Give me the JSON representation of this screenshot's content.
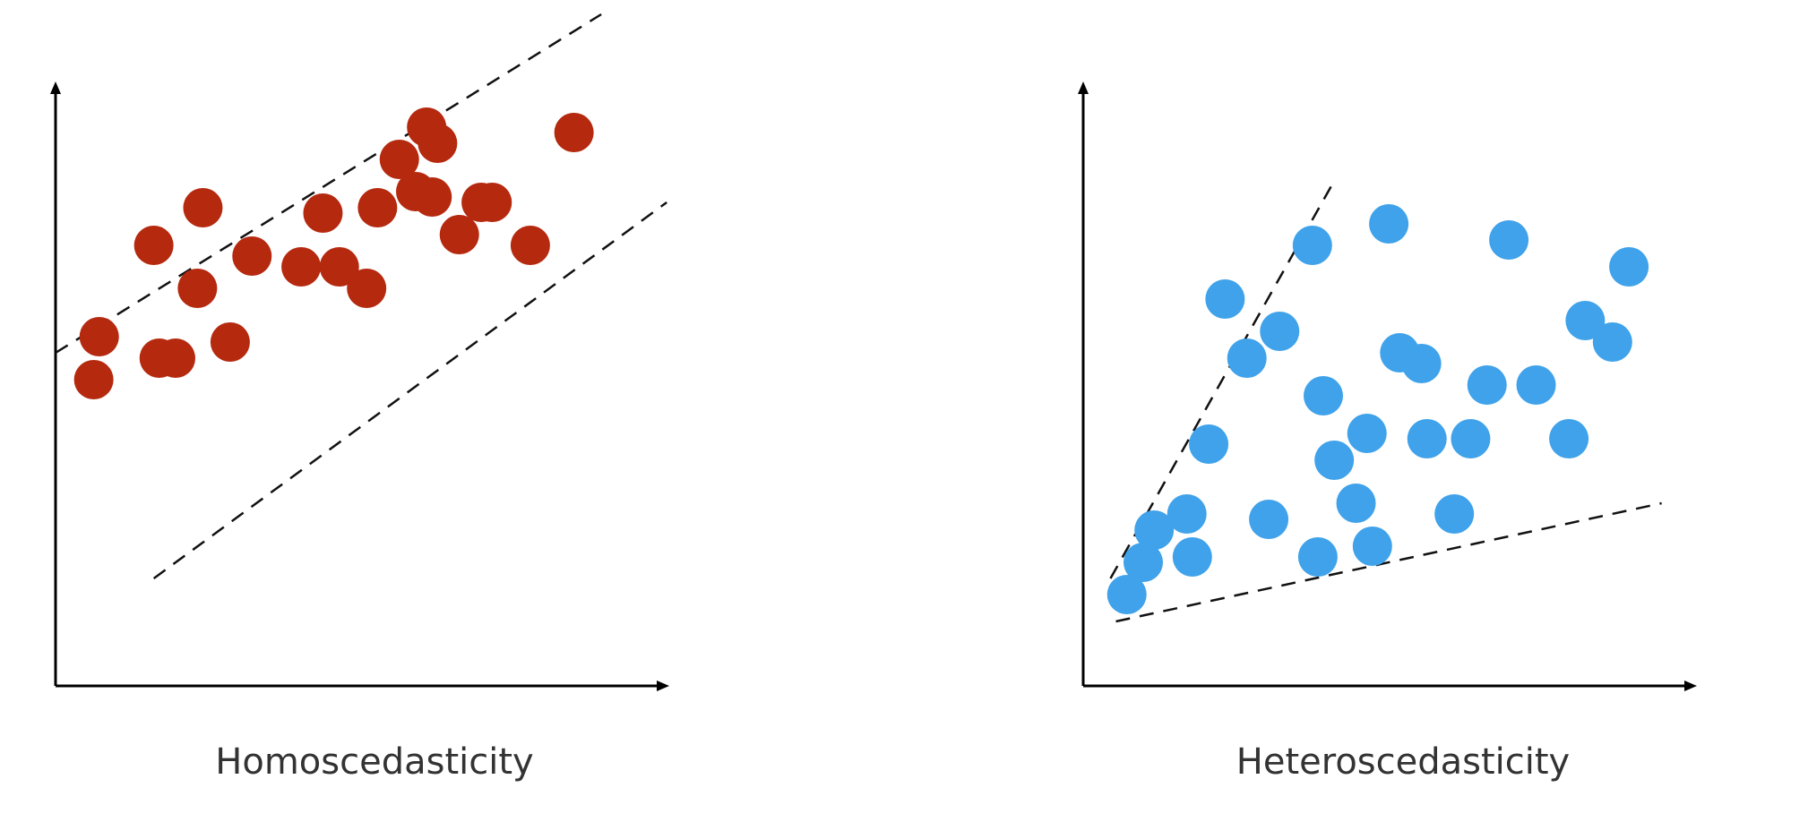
{
  "panels": [
    {
      "caption": "Homoscedasticity",
      "color": "#b5290f",
      "points": [
        [
          2.7,
          8.9
        ],
        [
          1.8,
          8.2
        ],
        [
          6.8,
          10.4
        ],
        [
          2.6,
          7.4
        ],
        [
          9.5,
          10.3
        ],
        [
          5.7,
          7.4
        ],
        [
          6.9,
          9.1
        ],
        [
          5.2,
          7.8
        ],
        [
          4.5,
          7.8
        ],
        [
          8.7,
          8.2
        ],
        [
          3.6,
          8.0
        ],
        [
          6.3,
          9.8
        ],
        [
          0.8,
          6.5
        ],
        [
          2.2,
          6.1
        ],
        [
          8.0,
          9.0
        ],
        [
          4.9,
          8.8
        ],
        [
          7.4,
          8.4
        ],
        [
          7.8,
          9.0
        ],
        [
          0.7,
          5.7
        ],
        [
          5.9,
          8.9
        ],
        [
          7.0,
          10.1
        ],
        [
          3.2,
          6.4
        ],
        [
          1.9,
          6.1
        ],
        [
          6.6,
          9.2
        ]
      ],
      "band": [
        [
          [
            0,
            6.2
          ],
          [
            10,
            12.5
          ]
        ],
        [
          [
            1.8,
            2.0
          ],
          [
            11.2,
            9.0
          ]
        ]
      ]
    },
    {
      "caption": "Heteroscedasticity",
      "color": "#3fa2ea",
      "points": [
        [
          0.8,
          1.7
        ],
        [
          1.1,
          2.3
        ],
        [
          1.9,
          3.2
        ],
        [
          2.3,
          4.5
        ],
        [
          3.4,
          3.1
        ],
        [
          2.6,
          7.2
        ],
        [
          3.0,
          6.1
        ],
        [
          3.6,
          6.6
        ],
        [
          4.2,
          8.2
        ],
        [
          4.4,
          5.4
        ],
        [
          5.0,
          3.4
        ],
        [
          5.3,
          2.6
        ],
        [
          5.6,
          8.6
        ],
        [
          5.8,
          6.2
        ],
        [
          6.3,
          4.6
        ],
        [
          6.8,
          3.2
        ],
        [
          7.1,
          4.6
        ],
        [
          7.4,
          5.6
        ],
        [
          7.8,
          8.3
        ],
        [
          8.3,
          5.6
        ],
        [
          8.9,
          4.6
        ],
        [
          9.7,
          6.4
        ],
        [
          10.0,
          7.8
        ],
        [
          9.2,
          6.8
        ],
        [
          4.3,
          2.4
        ],
        [
          2.0,
          2.4
        ],
        [
          1.3,
          2.9
        ],
        [
          4.6,
          4.2
        ],
        [
          5.2,
          4.7
        ],
        [
          6.2,
          6.0
        ]
      ],
      "band": [
        [
          [
            0.5,
            2.0
          ],
          [
            4.6,
            9.4
          ]
        ],
        [
          [
            0.6,
            1.2
          ],
          [
            10.6,
            3.4
          ]
        ]
      ]
    }
  ]
}
